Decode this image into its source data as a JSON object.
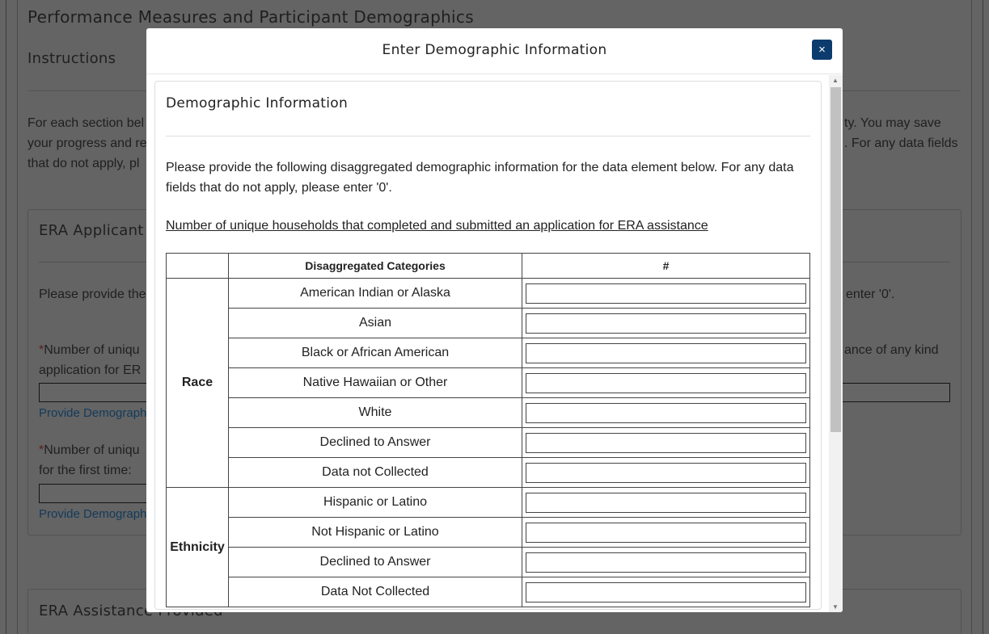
{
  "background": {
    "title": "Performance Measures and Participant Demographics",
    "instructions_heading": "Instructions",
    "instructions_line1_left": "For each section bel",
    "instructions_line1_right": "ty. You may save",
    "instructions_line2_left": "your progress and re",
    "instructions_line2_right": ". For any data fields",
    "instructions_line3_left": "that do not apply, pl",
    "section1_title": "ERA Applicant",
    "section1_text_left": "Please provide the",
    "section1_text_right": "enter '0'.",
    "q1_left": "Number of uniqu",
    "q1_right": "ance of any kind",
    "q1_line2": "application for ER",
    "q1_link": "Provide Demographi",
    "q2_left": "Number of uniqu",
    "q2_line2": "for the first time:",
    "q2_link": "Provide Demographi",
    "section2_title": "ERA Assistance Provided"
  },
  "modal": {
    "title": "Enter Demographic Information",
    "close_label": "×",
    "card_title": "Demographic Information",
    "intro": "Please provide the following disaggregated demographic information for the data element below. For any data fields that do not apply, please enter '0'.",
    "data_element": "Number of unique households that completed and submitted an application for ERA assistance",
    "table": {
      "headers": [
        "",
        "Disaggregated Categories",
        "#"
      ],
      "groups": [
        {
          "name": "Race",
          "rows": [
            "American Indian or Alaska",
            "Asian",
            "Black or African American",
            "Native Hawaiian or Other",
            "White",
            "Declined to Answer",
            "Data not Collected"
          ]
        },
        {
          "name": "Ethnicity",
          "rows": [
            "Hispanic or Latino",
            "Not Hispanic or Latino",
            "Declined to Answer",
            "Data Not Collected"
          ]
        }
      ]
    }
  },
  "colors": {
    "close_button": "#0c3c6e",
    "link": "#1a5a96"
  }
}
